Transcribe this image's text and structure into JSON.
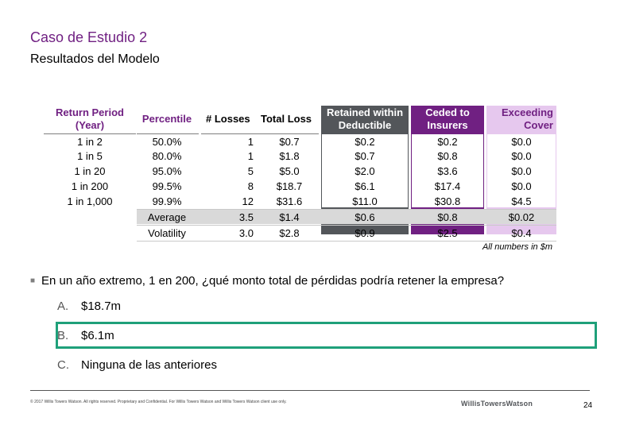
{
  "slide": {
    "title": "Caso de Estudio 2",
    "subtitle": "Resultados del Modelo"
  },
  "table": {
    "headers": {
      "return_period": "Return Period (Year)",
      "percentile": "Percentile",
      "losses": "# Losses",
      "total_loss": "Total Loss",
      "retained": "Retained within Deductible",
      "ceded": "Ceded to Insurers",
      "exceeding": "Exceeding Cover"
    },
    "rows": [
      {
        "return_period": "1 in 2",
        "percentile": "50.0%",
        "losses": "1",
        "total_loss": "$0.7",
        "retained": "$0.2",
        "ceded": "$0.2",
        "exceeding": "$0.0"
      },
      {
        "return_period": "1 in 5",
        "percentile": "80.0%",
        "losses": "1",
        "total_loss": "$1.8",
        "retained": "$0.7",
        "ceded": "$0.8",
        "exceeding": "$0.0"
      },
      {
        "return_period": "1 in 20",
        "percentile": "95.0%",
        "losses": "5",
        "total_loss": "$5.0",
        "retained": "$2.0",
        "ceded": "$3.6",
        "exceeding": "$0.0"
      },
      {
        "return_period": "1 in 200",
        "percentile": "99.5%",
        "losses": "8",
        "total_loss": "$18.7",
        "retained": "$6.1",
        "ceded": "$17.4",
        "exceeding": "$0.0"
      },
      {
        "return_period": "1 in 1,000",
        "percentile": "99.9%",
        "losses": "12",
        "total_loss": "$31.6",
        "retained": "$11.0",
        "ceded": "$30.8",
        "exceeding": "$4.5"
      }
    ],
    "summary": [
      {
        "label": "Average",
        "losses": "3.5",
        "total_loss": "$1.4",
        "retained": "$0.6",
        "ceded": "$0.8",
        "exceeding": "$0.02"
      },
      {
        "label": "Volatility",
        "losses": "3.0",
        "total_loss": "$2.8",
        "retained": "$0.9",
        "ceded": "$2.5",
        "exceeding": "$0.4"
      }
    ],
    "note": "All numbers in $m"
  },
  "question": {
    "text": "En un año extremo, 1 en 200, ¿qué monto total de pérdidas podría retener la empresa?",
    "options": [
      {
        "letter": "A.",
        "text": "$18.7m"
      },
      {
        "letter": "B.",
        "text": "$6.1m"
      },
      {
        "letter": "C.",
        "text": "Ninguna de las anteriores"
      }
    ]
  },
  "footer": {
    "copyright": "© 2017 Willis Towers Watson. All rights reserved. Proprietary and Confidential. For Willis Towers Watson and Willis Towers Watson client use only.",
    "logo": "WillisTowersWatson",
    "page": "24"
  },
  "colors": {
    "title": "#702082",
    "dark_band": "#53565a",
    "purple_band": "#702082",
    "light_band": "#e6c8ee",
    "summary_band": "#d9d9d9",
    "highlight": "#1fa07a"
  }
}
